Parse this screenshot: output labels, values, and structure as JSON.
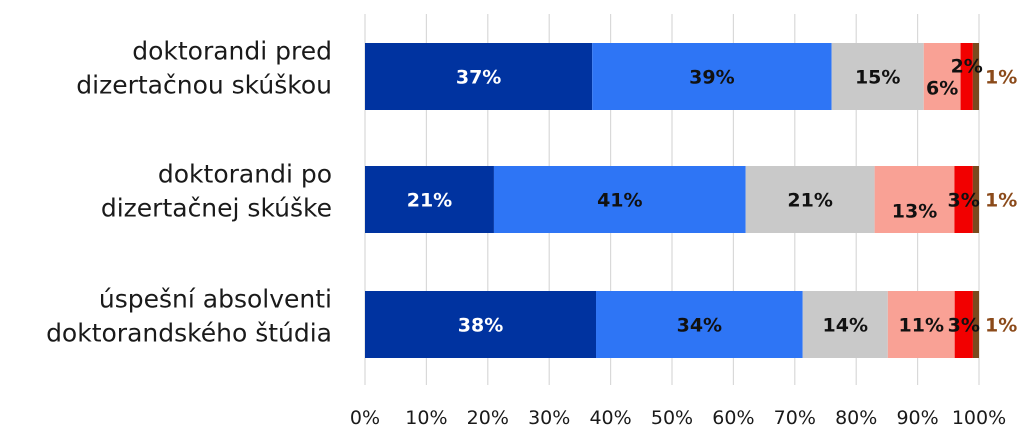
{
  "chart_data": {
    "type": "bar",
    "orientation": "horizontal",
    "stacked": true,
    "percent": true,
    "categories": [
      [
        "doktorandi pred",
        "dizertačnou skúškou"
      ],
      [
        "doktorandi po",
        "dizertačnej skúške"
      ],
      [
        "úspešní absolventi",
        "doktorandského štúdia"
      ]
    ],
    "series": [
      {
        "values": [
          37,
          21,
          38
        ],
        "labels": [
          "37%",
          "21%",
          "38%"
        ],
        "color": "#0033A0",
        "label_color": "#ffffff"
      },
      {
        "values": [
          39,
          41,
          34
        ],
        "labels": [
          "39%",
          "41%",
          "34%"
        ],
        "color": "#2E75F5",
        "label_color": "#111111"
      },
      {
        "values": [
          15,
          21,
          14
        ],
        "labels": [
          "15%",
          "21%",
          "14%"
        ],
        "color": "#C9C9C9",
        "label_color": "#111111"
      },
      {
        "values": [
          6,
          13,
          11
        ],
        "labels": [
          "6%",
          "13%",
          "11%"
        ],
        "color": "#F9A195",
        "label_color": "#111111"
      },
      {
        "values": [
          2,
          3,
          3
        ],
        "labels": [
          "2%",
          "3%",
          "3%"
        ],
        "color": "#F20000",
        "label_color": "#111111"
      },
      {
        "values": [
          1,
          1,
          1
        ],
        "labels": [
          "1%",
          "1%",
          "1%"
        ],
        "color": "#7A4A1E",
        "label_color": "#8B4A1A"
      }
    ],
    "xlim": [
      0,
      100
    ],
    "xticks": [
      "0%",
      "10%",
      "20%",
      "30%",
      "40%",
      "50%",
      "60%",
      "70%",
      "80%",
      "90%",
      "100%"
    ],
    "grid": true,
    "legend": "none"
  }
}
